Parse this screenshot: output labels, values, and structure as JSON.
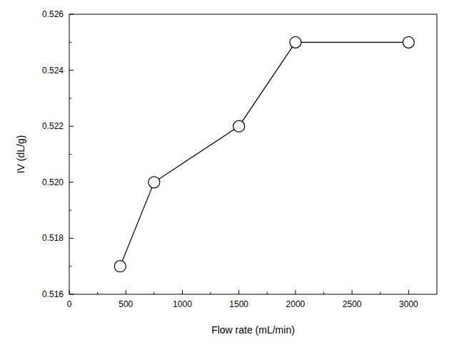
{
  "chart_data": {
    "type": "line",
    "x_label": "Flow rate (mL/min)",
    "y_label": "IV (dL/g)",
    "x": [
      450,
      750,
      1500,
      2000,
      3000
    ],
    "values": [
      0.517,
      0.52,
      0.522,
      0.525,
      0.525
    ],
    "color": "#000000",
    "marker": "circle",
    "line_style": "solid",
    "xlim": [
      0,
      3250
    ],
    "xticks": [
      0,
      500,
      1000,
      1500,
      2000,
      2500,
      3000
    ],
    "ylim": [
      0.516,
      0.526
    ],
    "yticks": [
      0.516,
      0.518,
      {
        "value": 0.52,
        "label": "0.520"
      },
      0.522,
      0.524,
      0.526
    ],
    "grid": false
  }
}
